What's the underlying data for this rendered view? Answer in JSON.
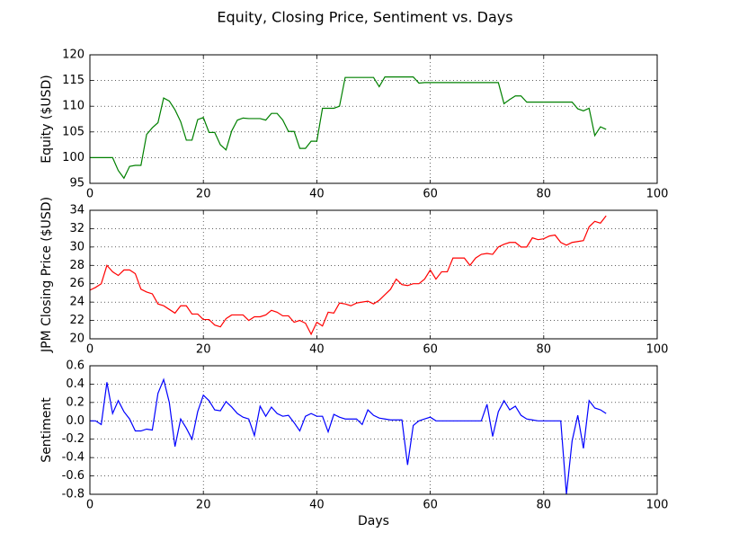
{
  "title": "Equity, Closing Price, Sentiment vs. Days",
  "chart_data": [
    {
      "type": "line",
      "ylabel": "Equity ($USD)",
      "grid": true,
      "xlim": [
        0,
        100
      ],
      "xticks": [
        0,
        20,
        40,
        60,
        80,
        100
      ],
      "ylim": [
        95,
        120
      ],
      "yticks": [
        95,
        100,
        105,
        110,
        115,
        120
      ],
      "x": [
        0,
        1,
        2,
        3,
        4,
        5,
        6,
        7,
        8,
        9,
        10,
        11,
        12,
        13,
        14,
        15,
        16,
        17,
        18,
        19,
        20,
        21,
        22,
        23,
        24,
        25,
        26,
        27,
        28,
        29,
        30,
        31,
        32,
        33,
        34,
        35,
        36,
        37,
        38,
        39,
        40,
        41,
        42,
        43,
        44,
        45,
        46,
        47,
        48,
        49,
        50,
        51,
        52,
        53,
        54,
        55,
        56,
        57,
        58,
        59,
        60,
        61,
        62,
        63,
        64,
        65,
        66,
        67,
        68,
        69,
        70,
        71,
        72,
        73,
        74,
        75,
        76,
        77,
        78,
        79,
        80,
        81,
        82,
        83,
        84,
        85,
        86,
        87,
        88,
        89,
        90,
        91
      ],
      "series": [
        {
          "color": "#008000",
          "values": [
            100,
            100,
            100,
            100,
            100,
            97.5,
            96,
            98.3,
            98.5,
            98.5,
            104.5,
            105.8,
            106.8,
            111.6,
            111,
            109.3,
            107,
            103.4,
            103.4,
            107.4,
            107.8,
            104.9,
            104.9,
            102.5,
            101.5,
            105.2,
            107.3,
            107.7,
            107.6,
            107.6,
            107.6,
            107.3,
            108.6,
            108.6,
            107.3,
            105.1,
            105.1,
            101.8,
            101.8,
            103.2,
            103.2,
            109.6,
            109.6,
            109.6,
            110,
            115.6,
            115.6,
            115.6,
            115.6,
            115.6,
            115.6,
            113.8,
            115.7,
            115.7,
            115.7,
            115.7,
            115.7,
            115.7,
            114.5,
            114.6,
            114.6,
            114.6,
            114.6,
            114.6,
            114.6,
            114.6,
            114.6,
            114.6,
            114.6,
            114.6,
            114.6,
            114.6,
            114.6,
            110.5,
            111.3,
            112,
            112,
            110.8,
            110.8,
            110.8,
            110.8,
            110.8,
            110.8,
            110.8,
            110.8,
            110.8,
            109.5,
            109.1,
            109.6,
            104.3,
            106,
            105.5
          ]
        }
      ]
    },
    {
      "type": "line",
      "ylabel": "JPM Closing Price ($USD)",
      "grid": true,
      "xlim": [
        0,
        100
      ],
      "xticks": [
        0,
        20,
        40,
        60,
        80,
        100
      ],
      "ylim": [
        20,
        34
      ],
      "yticks": [
        20,
        22,
        24,
        26,
        28,
        30,
        32,
        34
      ],
      "x": [
        0,
        1,
        2,
        3,
        4,
        5,
        6,
        7,
        8,
        9,
        10,
        11,
        12,
        13,
        14,
        15,
        16,
        17,
        18,
        19,
        20,
        21,
        22,
        23,
        24,
        25,
        26,
        27,
        28,
        29,
        30,
        31,
        32,
        33,
        34,
        35,
        36,
        37,
        38,
        39,
        40,
        41,
        42,
        43,
        44,
        45,
        46,
        47,
        48,
        49,
        50,
        51,
        52,
        53,
        54,
        55,
        56,
        57,
        58,
        59,
        60,
        61,
        62,
        63,
        64,
        65,
        66,
        67,
        68,
        69,
        70,
        71,
        72,
        73,
        74,
        75,
        76,
        77,
        78,
        79,
        80,
        81,
        82,
        83,
        84,
        85,
        86,
        87,
        88,
        89,
        90,
        91
      ],
      "series": [
        {
          "color": "#ff0000",
          "values": [
            25.3,
            25.6,
            26,
            28,
            27.3,
            26.9,
            27.5,
            27.5,
            27.1,
            25.4,
            25.1,
            24.9,
            23.8,
            23.6,
            23.2,
            22.8,
            23.6,
            23.6,
            22.7,
            22.7,
            22.1,
            22.1,
            21.5,
            21.3,
            22.2,
            22.6,
            22.6,
            22.6,
            22,
            22.4,
            22.4,
            22.6,
            23.1,
            22.9,
            22.5,
            22.5,
            21.8,
            22,
            21.7,
            20.5,
            21.8,
            21.4,
            22.9,
            22.8,
            23.9,
            23.8,
            23.6,
            23.9,
            24,
            24.1,
            23.8,
            24.2,
            24.8,
            25.4,
            26.5,
            25.9,
            25.8,
            26,
            26,
            26.5,
            27.5,
            26.5,
            27.3,
            27.3,
            28.8,
            28.8,
            28.8,
            28,
            28.8,
            29.2,
            29.3,
            29.2,
            30,
            30.3,
            30.5,
            30.5,
            30,
            30,
            31,
            30.8,
            30.9,
            31.2,
            31.3,
            30.5,
            30.2,
            30.5,
            30.6,
            30.7,
            32.2,
            32.8,
            32.6,
            33.4
          ]
        }
      ]
    },
    {
      "type": "line",
      "ylabel": "Sentiment",
      "xlabel": "Days",
      "grid": true,
      "xlim": [
        0,
        100
      ],
      "xticks": [
        0,
        20,
        40,
        60,
        80,
        100
      ],
      "ylim": [
        -0.8,
        0.6
      ],
      "yticks": [
        -0.8,
        -0.6,
        -0.4,
        -0.2,
        {
          "value": 0,
          "label": "0.0"
        },
        0.2,
        0.4,
        0.6
      ],
      "x": [
        0,
        1,
        2,
        3,
        4,
        5,
        6,
        7,
        8,
        9,
        10,
        11,
        12,
        13,
        14,
        15,
        16,
        17,
        18,
        19,
        20,
        21,
        22,
        23,
        24,
        25,
        26,
        27,
        28,
        29,
        30,
        31,
        32,
        33,
        34,
        35,
        36,
        37,
        38,
        39,
        40,
        41,
        42,
        43,
        44,
        45,
        46,
        47,
        48,
        49,
        50,
        51,
        52,
        53,
        54,
        55,
        56,
        57,
        58,
        59,
        60,
        61,
        62,
        63,
        64,
        65,
        66,
        67,
        68,
        69,
        70,
        71,
        72,
        73,
        74,
        75,
        76,
        77,
        78,
        79,
        80,
        81,
        82,
        83,
        84,
        85,
        86,
        87,
        88,
        89,
        90,
        91
      ],
      "series": [
        {
          "color": "#0000ff",
          "values": [
            0,
            0,
            -0.04,
            0.42,
            0.08,
            0.22,
            0.1,
            0.02,
            -0.11,
            -0.11,
            -0.09,
            -0.1,
            0.3,
            0.45,
            0.2,
            -0.28,
            0.02,
            -0.08,
            -0.2,
            0.1,
            0.28,
            0.22,
            0.12,
            0.11,
            0.21,
            0.15,
            0.08,
            0.04,
            0.02,
            -0.16,
            0.16,
            0.05,
            0.15,
            0.08,
            0.05,
            0.06,
            -0.02,
            -0.11,
            0.05,
            0.08,
            0.05,
            0.05,
            -0.12,
            0.07,
            0.04,
            0.02,
            0.02,
            0.02,
            -0.04,
            0.12,
            0.06,
            0.03,
            0.02,
            0.01,
            0.01,
            0.01,
            -0.48,
            -0.05,
            0,
            0.02,
            0.04,
            0,
            0,
            0,
            0,
            0,
            0,
            0,
            0,
            0,
            0.18,
            -0.17,
            0.1,
            0.22,
            0.12,
            0.16,
            0.06,
            0.02,
            0.01,
            0,
            0,
            0,
            0,
            0,
            -0.8,
            -0.22,
            0.06,
            -0.3,
            0.22,
            0.14,
            0.12,
            0.08
          ]
        }
      ]
    }
  ]
}
